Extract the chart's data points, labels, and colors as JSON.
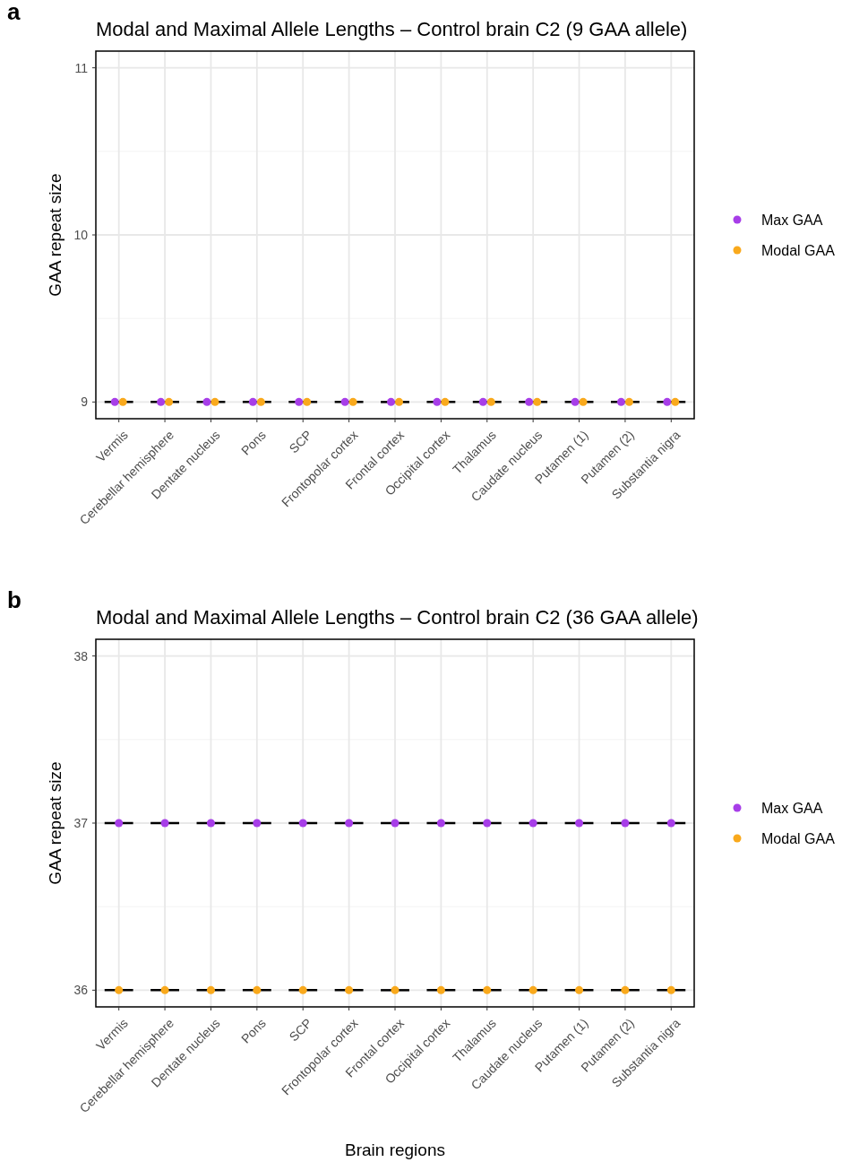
{
  "chart_data": [
    {
      "type": "scatter",
      "title": "Modal and Maximal Allele Lengths – Control brain C2 (9 GAA allele)",
      "ylabel": "GAA repeat size",
      "annotations": [
        "a"
      ],
      "categories": [
        "Vermis",
        "Cerebellar hemisphere",
        "Dentate nucleus",
        "Pons",
        "SCP",
        "Frontopolar cortex",
        "Frontal cortex",
        "Occipital cortex",
        "Thalamus",
        "Caudate nucleus",
        "Putamen (1)",
        "Putamen (2)",
        "Substantia nigra"
      ],
      "series": [
        {
          "type": "box",
          "color": "#000000",
          "boxes": [
            {
              "low": 9,
              "q1": 9,
              "median": 9,
              "q3": 9,
              "high": 9
            },
            {
              "low": 9,
              "q1": 9,
              "median": 9,
              "q3": 9,
              "high": 9
            },
            {
              "low": 9,
              "q1": 9,
              "median": 9,
              "q3": 9,
              "high": 9
            },
            {
              "low": 9,
              "q1": 9,
              "median": 9,
              "q3": 9,
              "high": 9
            },
            {
              "low": 9,
              "q1": 9,
              "median": 9,
              "q3": 9,
              "high": 9
            },
            {
              "low": 9,
              "q1": 9,
              "median": 9,
              "q3": 9,
              "high": 9
            },
            {
              "low": 9,
              "q1": 9,
              "median": 9,
              "q3": 9,
              "high": 9
            },
            {
              "low": 9,
              "q1": 9,
              "median": 9,
              "q3": 9,
              "high": 9
            },
            {
              "low": 9,
              "q1": 9,
              "median": 9,
              "q3": 9,
              "high": 9
            },
            {
              "low": 9,
              "q1": 9,
              "median": 9,
              "q3": 9,
              "high": 9
            },
            {
              "low": 9,
              "q1": 9,
              "median": 9,
              "q3": 9,
              "high": 9
            },
            {
              "low": 9,
              "q1": 9,
              "median": 9,
              "q3": 9,
              "high": 9
            },
            {
              "low": 9,
              "q1": 9,
              "median": 9,
              "q3": 9,
              "high": 9
            }
          ]
        },
        {
          "name": "Max GAA",
          "color": "#a73ee8",
          "values": [
            9,
            9,
            9,
            9,
            9,
            9,
            9,
            9,
            9,
            9,
            9,
            9,
            9
          ]
        },
        {
          "name": "Modal GAA",
          "color": "#f9a91c",
          "values": [
            9,
            9,
            9,
            9,
            9,
            9,
            9,
            9,
            9,
            9,
            9,
            9,
            9
          ]
        }
      ],
      "ylim": [
        8.9,
        11.1
      ],
      "yticks": [
        9,
        {
          "value": 9.5,
          "label": null
        },
        10,
        {
          "value": 10.5,
          "label": null
        },
        11
      ],
      "grid": true,
      "legend": "right",
      "marker": "circle"
    },
    {
      "type": "scatter",
      "title": "Modal and Maximal Allele Lengths – Control brain C2 (36 GAA allele)",
      "xlabel": "Brain regions",
      "ylabel": "GAA repeat size",
      "annotations": [
        "b"
      ],
      "categories": [
        "Vermis",
        "Cerebellar hemisphere",
        "Dentate nucleus",
        "Pons",
        "SCP",
        "Frontopolar cortex",
        "Frontal cortex",
        "Occipital cortex",
        "Thalamus",
        "Caudate nucleus",
        "Putamen (1)",
        "Putamen (2)",
        "Substantia nigra"
      ],
      "series": [
        {
          "type": "box",
          "color": "#000000",
          "boxes": [
            {
              "low": 37,
              "q1": 37,
              "median": 37,
              "q3": 37,
              "high": 37
            },
            {
              "low": 37,
              "q1": 37,
              "median": 37,
              "q3": 37,
              "high": 37
            },
            {
              "low": 37,
              "q1": 37,
              "median": 37,
              "q3": 37,
              "high": 37
            },
            {
              "low": 37,
              "q1": 37,
              "median": 37,
              "q3": 37,
              "high": 37
            },
            {
              "low": 37,
              "q1": 37,
              "median": 37,
              "q3": 37,
              "high": 37
            },
            {
              "low": 37,
              "q1": 37,
              "median": 37,
              "q3": 37,
              "high": 37
            },
            {
              "low": 37,
              "q1": 37,
              "median": 37,
              "q3": 37,
              "high": 37
            },
            {
              "low": 37,
              "q1": 37,
              "median": 37,
              "q3": 37,
              "high": 37
            },
            {
              "low": 37,
              "q1": 37,
              "median": 37,
              "q3": 37,
              "high": 37
            },
            {
              "low": 37,
              "q1": 37,
              "median": 37,
              "q3": 37,
              "high": 37
            },
            {
              "low": 37,
              "q1": 37,
              "median": 37,
              "q3": 37,
              "high": 37
            },
            {
              "low": 37,
              "q1": 37,
              "median": 37,
              "q3": 37,
              "high": 37
            },
            {
              "low": 37,
              "q1": 37,
              "median": 37,
              "q3": 37,
              "high": 37
            }
          ]
        },
        {
          "type": "box",
          "color": "#000000",
          "boxes": [
            {
              "low": 36,
              "q1": 36,
              "median": 36,
              "q3": 36,
              "high": 36
            },
            {
              "low": 36,
              "q1": 36,
              "median": 36,
              "q3": 36,
              "high": 36
            },
            {
              "low": 36,
              "q1": 36,
              "median": 36,
              "q3": 36,
              "high": 36
            },
            {
              "low": 36,
              "q1": 36,
              "median": 36,
              "q3": 36,
              "high": 36
            },
            {
              "low": 36,
              "q1": 36,
              "median": 36,
              "q3": 36,
              "high": 36
            },
            {
              "low": 36,
              "q1": 36,
              "median": 36,
              "q3": 36,
              "high": 36
            },
            {
              "low": 36,
              "q1": 36,
              "median": 36,
              "q3": 36,
              "high": 36
            },
            {
              "low": 36,
              "q1": 36,
              "median": 36,
              "q3": 36,
              "high": 36
            },
            {
              "low": 36,
              "q1": 36,
              "median": 36,
              "q3": 36,
              "high": 36
            },
            {
              "low": 36,
              "q1": 36,
              "median": 36,
              "q3": 36,
              "high": 36
            },
            {
              "low": 36,
              "q1": 36,
              "median": 36,
              "q3": 36,
              "high": 36
            },
            {
              "low": 36,
              "q1": 36,
              "median": 36,
              "q3": 36,
              "high": 36
            },
            {
              "low": 36,
              "q1": 36,
              "median": 36,
              "q3": 36,
              "high": 36
            }
          ]
        },
        {
          "name": "Max GAA",
          "color": "#a73ee8",
          "values": [
            37,
            37,
            37,
            37,
            37,
            37,
            37,
            37,
            37,
            37,
            37,
            37,
            37
          ]
        },
        {
          "name": "Modal GAA",
          "color": "#f9a91c",
          "values": [
            36,
            36,
            36,
            36,
            36,
            36,
            36,
            36,
            36,
            36,
            36,
            36,
            36
          ]
        }
      ],
      "ylim": [
        35.9,
        38.1
      ],
      "yticks": [
        36,
        {
          "value": 36.5,
          "label": null
        },
        37,
        {
          "value": 37.5,
          "label": null
        },
        38
      ],
      "grid": true,
      "legend": "right",
      "marker": "circle"
    }
  ]
}
